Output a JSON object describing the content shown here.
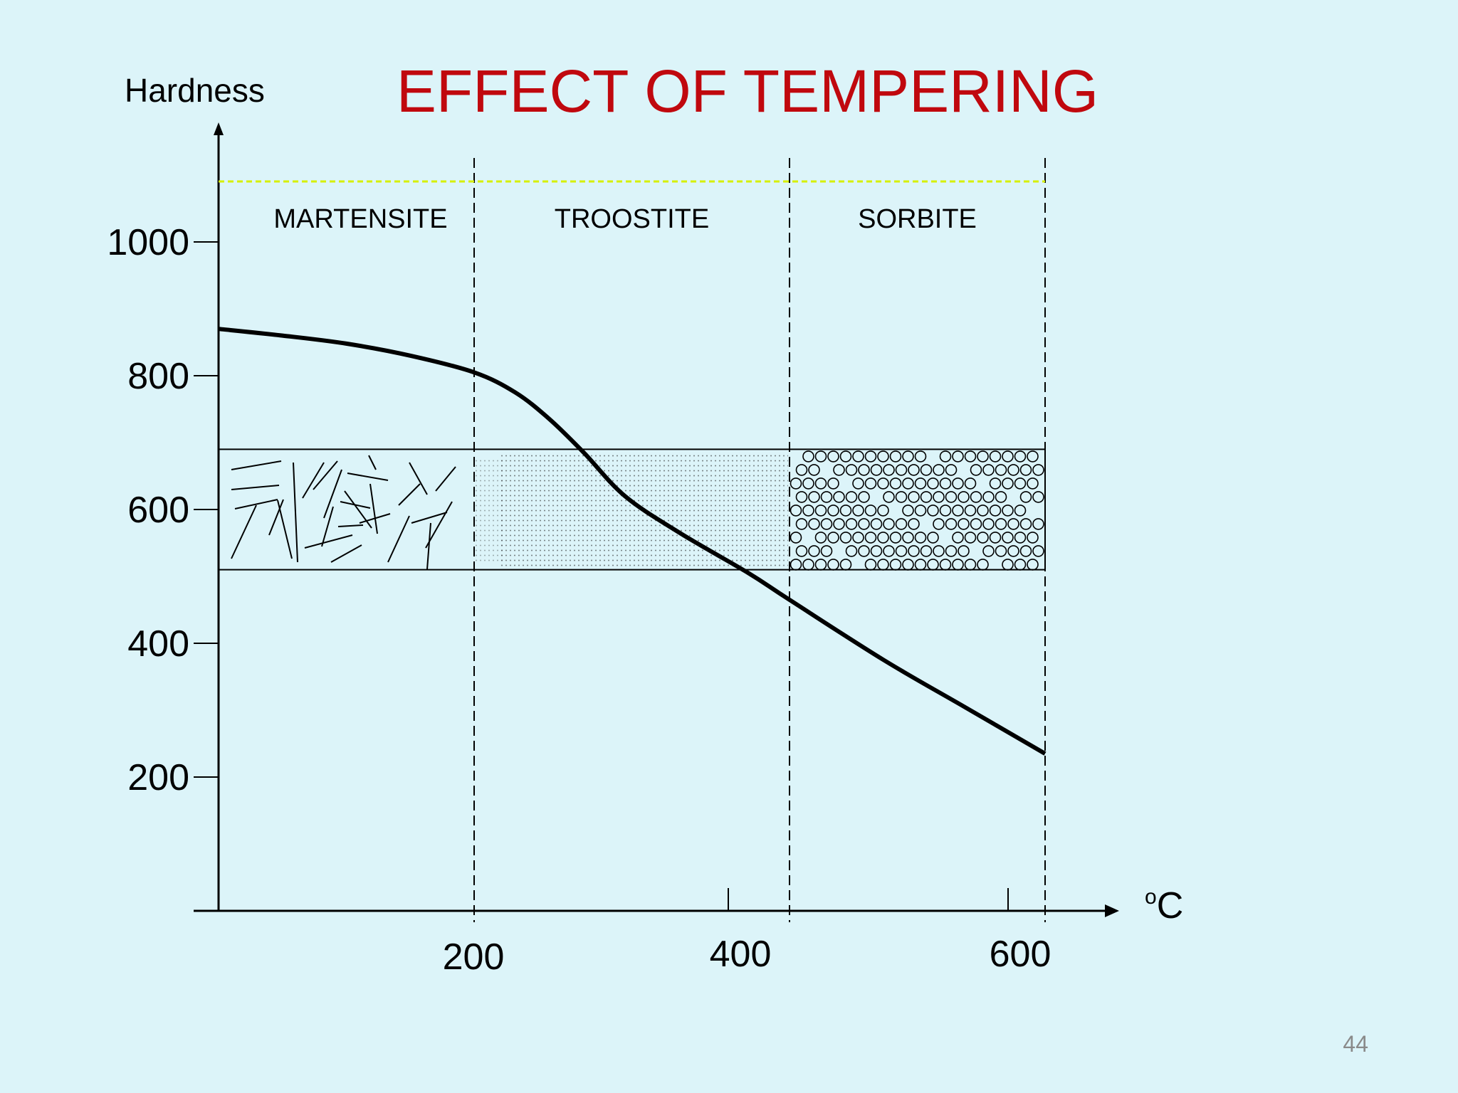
{
  "slide": {
    "page_number": "44"
  },
  "chart_data": {
    "type": "line",
    "title": "EFFECT OF TEMPERING",
    "title_color": "#c0080e",
    "ylabel": "Hardness",
    "xlabel_sup": "o",
    "xlabel_main": "C",
    "y_ticks": [
      200,
      400,
      600,
      800,
      1000
    ],
    "y_tick_labels": [
      "200",
      "400",
      "600",
      "800",
      "1000"
    ],
    "x_tick_labels": [
      {
        "value": 200,
        "label": "200"
      },
      {
        "value": 400,
        "label": "400"
      },
      {
        "value": 600,
        "label": "600"
      }
    ],
    "regions": [
      {
        "name": "MARTENSITE",
        "x_start": 0,
        "x_end": 200,
        "texture": "needles"
      },
      {
        "name": "TROOSTITE",
        "x_start": 200,
        "x_end": 430,
        "texture": "dots"
      },
      {
        "name": "SORBITE",
        "x_start": 430,
        "x_end": 620,
        "texture": "circles"
      }
    ],
    "structure_band": {
      "y_min": 510,
      "y_max": 690
    },
    "series": [
      {
        "name": "Hardness",
        "x": [
          0,
          50,
          100,
          150,
          200,
          230,
          255,
          280,
          310,
          350,
          400,
          430,
          500,
          560,
          620
        ],
        "y": [
          870,
          860,
          848,
          830,
          805,
          775,
          735,
          685,
          620,
          565,
          505,
          465,
          375,
          305,
          235
        ]
      }
    ],
    "xlim": [
      0,
      620
    ],
    "ylim": [
      0,
      1100
    ],
    "grid": false
  }
}
